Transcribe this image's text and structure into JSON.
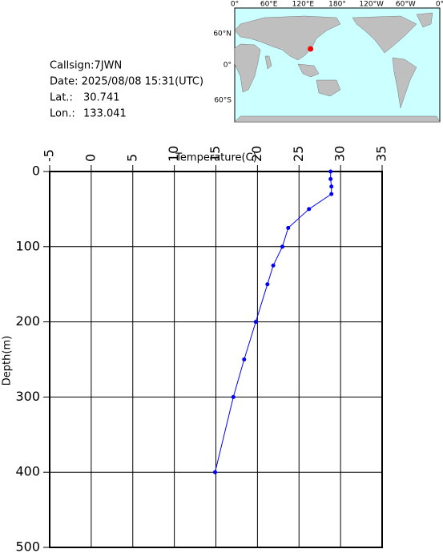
{
  "info": {
    "callsign": "Callsign:7JWN",
    "date": "Date:  2025/08/08 15:31(UTC)",
    "lat_label": "Lat.:",
    "lat": 30.741,
    "lon_label": "Lon.:",
    "lon": 133.041
  },
  "map": {
    "lon_labels": [
      "0°",
      "60°E",
      "120°E",
      "180°",
      "120°W",
      "60°W",
      "0°"
    ],
    "lat_labels": [
      "60°N",
      "0°",
      "60°S"
    ]
  },
  "chart_data": {
    "type": "line",
    "x_label": "Temperature(C)",
    "y_label": "Depth(m)",
    "color": "#0000ff",
    "temperature": [
      28.8,
      28.8,
      28.9,
      28.9,
      26.2,
      23.7,
      23.0,
      21.9,
      21.2,
      19.8,
      18.4,
      17.1,
      14.9
    ],
    "depth": [
      0,
      10,
      20,
      30,
      50,
      75,
      100,
      125,
      150,
      200,
      250,
      300,
      400
    ],
    "xlim": [
      -5,
      35
    ],
    "xticks": [
      -5,
      0,
      5,
      10,
      15,
      20,
      25,
      30,
      35
    ],
    "ylim": [
      0,
      500
    ],
    "yticks": [
      0,
      100,
      200,
      300,
      400,
      500
    ],
    "y_inverted": true,
    "grid": true
  }
}
